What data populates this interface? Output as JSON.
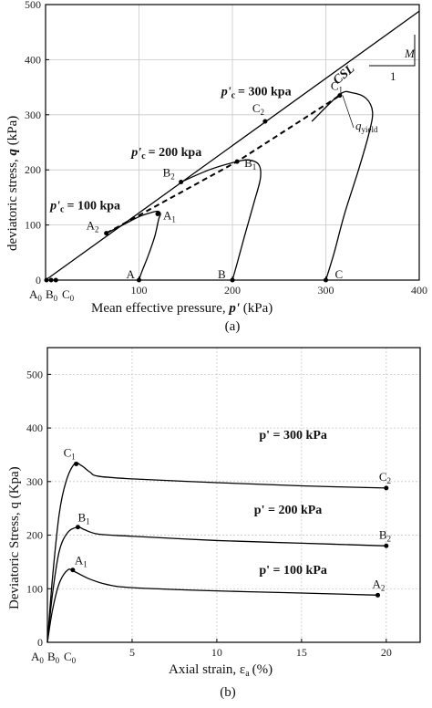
{
  "chart_data": [
    {
      "type": "line",
      "panel_label": "(a)",
      "xlabel_text": "Mean effective pressure,",
      "xlabel_symbol": "p'",
      "xlabel_unit": "(kPa)",
      "ylabel_text": "deviatoric stress,",
      "ylabel_symbol": "q",
      "ylabel_unit": "(kPa)",
      "xlim": [
        0,
        400
      ],
      "ylim": [
        0,
        500
      ],
      "xticks": [
        0,
        100,
        200,
        300,
        400
      ],
      "yticks": [
        0,
        100,
        200,
        300,
        400,
        500
      ],
      "grid": true,
      "csl": {
        "label": "CSL",
        "slope": 1.22,
        "x": [
          0,
          400
        ],
        "y": [
          0,
          488
        ]
      },
      "slope_triangle": {
        "label_run": "1",
        "label_rise": "M"
      },
      "yield_line": {
        "label": "q",
        "label_sub": "yield",
        "x": [
          65,
          205,
          315
        ],
        "y": [
          85,
          215,
          335
        ]
      },
      "series": [
        {
          "name": "p'c = 100 kpa",
          "x": [
            100,
            103,
            110,
            117,
            121,
            123,
            120,
            112,
            100,
            85,
            65
          ],
          "y": [
            0,
            15,
            45,
            80,
            110,
            120,
            125,
            122,
            115,
            102,
            85
          ]
        },
        {
          "name": "p'c = 200 kpa",
          "x": [
            200,
            205,
            213,
            223,
            230,
            228,
            216,
            200,
            175,
            145
          ],
          "y": [
            0,
            30,
            80,
            140,
            185,
            210,
            218,
            213,
            200,
            178
          ]
        },
        {
          "name": "p'c = 300 kpa",
          "x": [
            300,
            309,
            320,
            335,
            346,
            350,
            343,
            328,
            315,
            285
          ],
          "y": [
            0,
            50,
            120,
            200,
            265,
            305,
            330,
            340,
            337,
            288
          ]
        }
      ],
      "points": [
        {
          "label": "A",
          "x": 100,
          "y": 0
        },
        {
          "label": "B",
          "x": 200,
          "y": 0
        },
        {
          "label": "C",
          "x": 300,
          "y": 0
        },
        {
          "label": "A1",
          "x": 120,
          "y": 120
        },
        {
          "label": "B1",
          "x": 205,
          "y": 215
        },
        {
          "label": "C1",
          "x": 315,
          "y": 335
        },
        {
          "label": "A2",
          "x": 65,
          "y": 85
        },
        {
          "label": "B2",
          "x": 145,
          "y": 178
        },
        {
          "label": "C2",
          "x": 235,
          "y": 288
        }
      ],
      "origin_points": [
        {
          "label": "A0",
          "x": 0,
          "y": 0
        },
        {
          "label": "B0",
          "x": 5,
          "y": 0
        },
        {
          "label": "C0",
          "x": 10,
          "y": 0
        }
      ],
      "annotations": [
        {
          "prefix": "p'",
          "sub": "c",
          "value": "= 100 kpa",
          "at_x": 5,
          "at_y": 128
        },
        {
          "prefix": "p'",
          "sub": "c",
          "value": "= 200 kpa",
          "at_x": 92,
          "at_y": 225
        },
        {
          "prefix": "p'",
          "sub": "c",
          "value": "= 300 kpa",
          "at_x": 188,
          "at_y": 335
        }
      ]
    },
    {
      "type": "line",
      "panel_label": "(b)",
      "xlabel_text": "Axial strain, ε",
      "xlabel_sub": "a",
      "xlabel_unit": "(%)",
      "ylabel": "Deviatoric Stress, q (Kpa)",
      "xlim": [
        0,
        22
      ],
      "ylim": [
        0,
        550
      ],
      "xticks": [
        0,
        5,
        10,
        15,
        20
      ],
      "yticks": [
        0,
        100,
        200,
        300,
        400,
        500
      ],
      "grid": true,
      "series": [
        {
          "name": "p' = 300 kPa",
          "x": [
            0,
            0.3,
            0.7,
            1.1,
            1.6,
            2.0,
            2.5,
            3.0,
            5,
            10,
            15,
            20
          ],
          "y": [
            0,
            120,
            240,
            300,
            333,
            330,
            318,
            310,
            305,
            298,
            292,
            288
          ]
        },
        {
          "name": "p' = 200 kPa",
          "x": [
            0,
            0.3,
            0.7,
            1.2,
            1.8,
            2.2,
            3.0,
            5,
            10,
            15,
            20
          ],
          "y": [
            0,
            90,
            170,
            205,
            215,
            210,
            202,
            198,
            190,
            185,
            180
          ]
        },
        {
          "name": "p' = 100 kPa",
          "x": [
            0,
            0.3,
            0.7,
            1.2,
            1.6,
            2.5,
            3.5,
            5,
            10,
            15,
            19.5
          ],
          "y": [
            0,
            60,
            110,
            135,
            132,
            118,
            108,
            102,
            96,
            92,
            88
          ]
        }
      ],
      "points": [
        {
          "label": "A1",
          "x": 1.5,
          "y": 135
        },
        {
          "label": "B1",
          "x": 1.8,
          "y": 215
        },
        {
          "label": "C1",
          "x": 1.7,
          "y": 333
        },
        {
          "label": "A2",
          "x": 19.5,
          "y": 88
        },
        {
          "label": "B2",
          "x": 20,
          "y": 180
        },
        {
          "label": "C2",
          "x": 20,
          "y": 288
        }
      ],
      "origin_labels": [
        "A0",
        "B0",
        "C0"
      ],
      "annotations": [
        {
          "text": "p' = 300 kPa",
          "at_x": 12.5,
          "at_y": 380
        },
        {
          "text": "p' = 200 kPa",
          "at_x": 12.2,
          "at_y": 240
        },
        {
          "text": "p' = 100 kPa",
          "at_x": 12.5,
          "at_y": 128
        }
      ]
    }
  ]
}
